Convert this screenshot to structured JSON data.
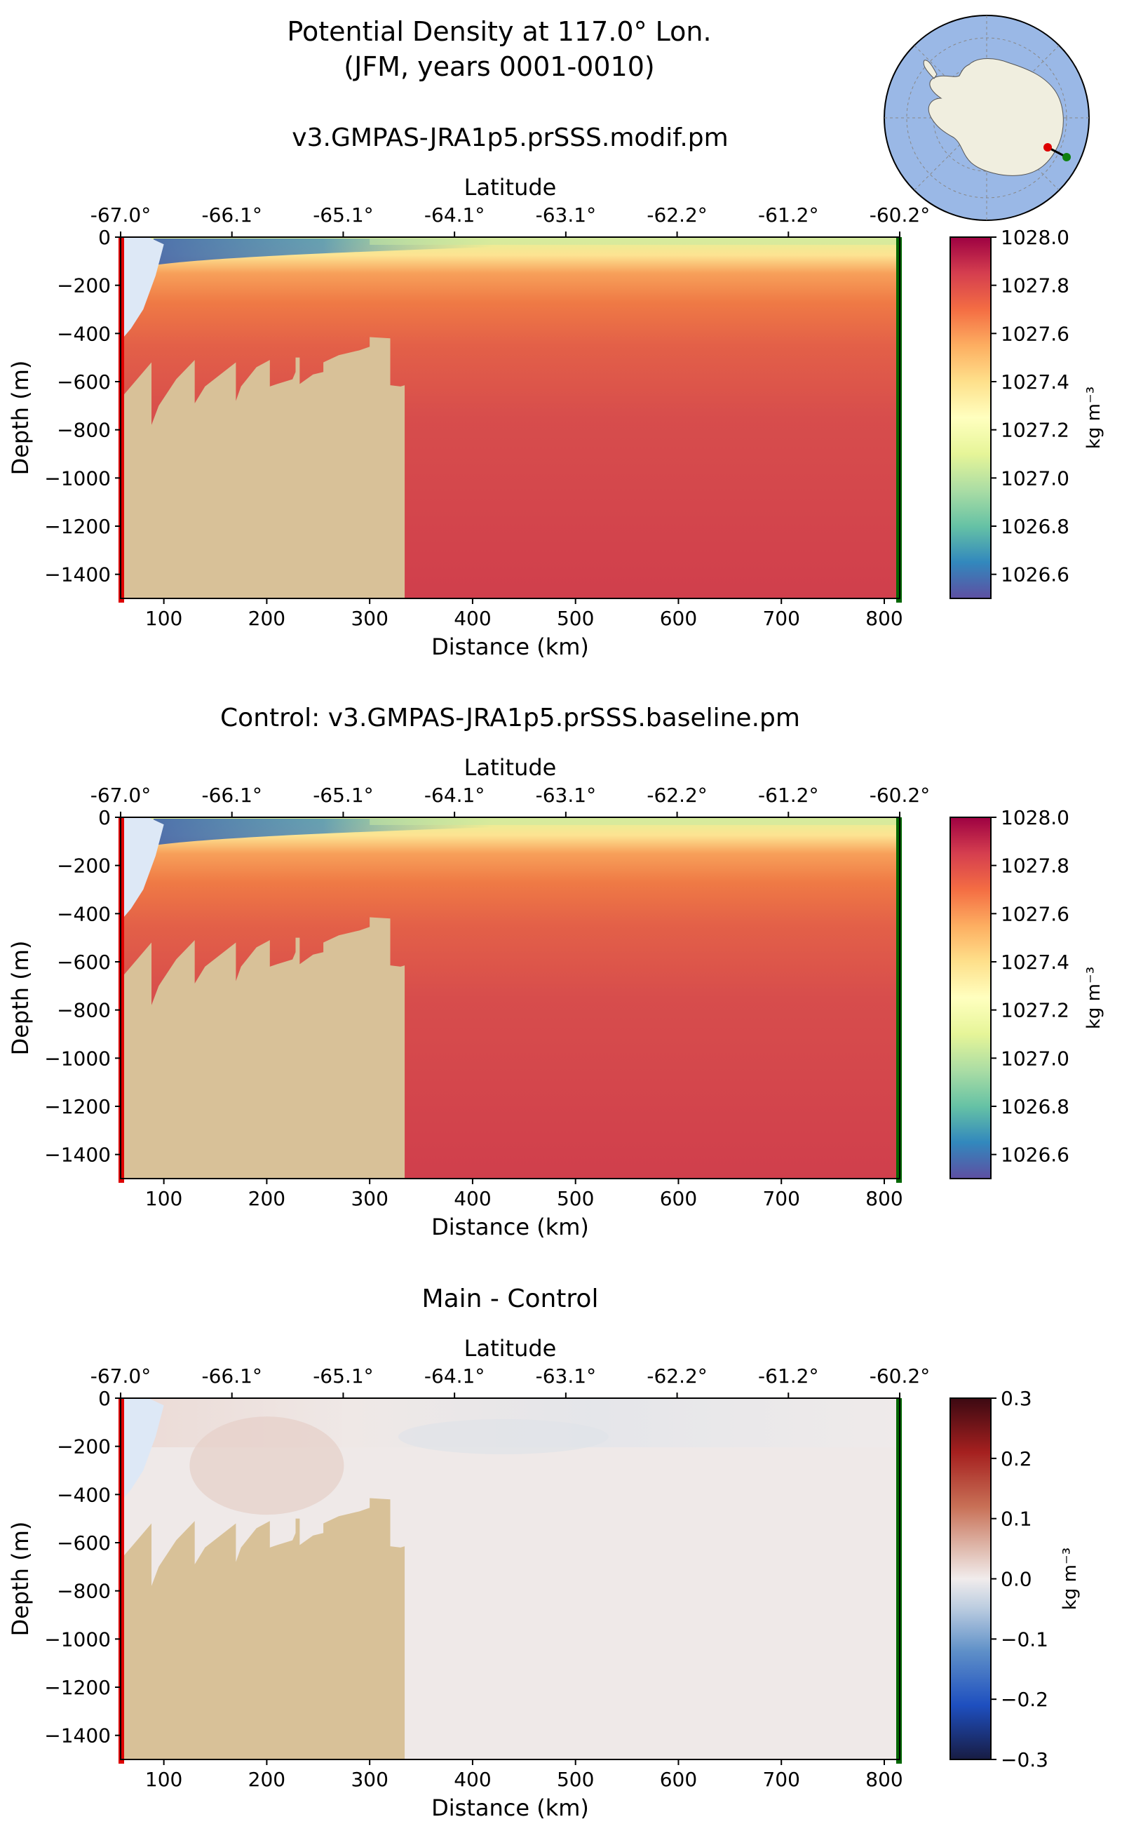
{
  "figure": {
    "title_line1": "Potential Density at 117.0° Lon.",
    "title_line2": "(JFM, years 0001-0010)"
  },
  "colors": {
    "land": "#d8c198",
    "ice_shelf_cavity": "#dde8f6",
    "start_marker": "#dd0000",
    "end_marker": "#006600",
    "map_ocean": "#9ab8e6",
    "map_land": "#f0eedf"
  },
  "chart_data": [
    {
      "type": "heatmap",
      "title": "v3.GMPAS-JRA1p5.prSSS.modif.pm",
      "xlabel": "Distance (km)",
      "ylabel": "Depth (m)",
      "top_axis_label": "Latitude",
      "xlim": [
        58,
        815
      ],
      "ylim": [
        -1500,
        0
      ],
      "x_ticks": [
        100,
        200,
        300,
        400,
        500,
        600,
        700,
        800
      ],
      "y_ticks": [
        0,
        -200,
        -400,
        -600,
        -800,
        -1000,
        -1200,
        -1400
      ],
      "x_tick_labels": [
        "100",
        "200",
        "300",
        "400",
        "500",
        "600",
        "700",
        "800"
      ],
      "y_tick_labels": [
        "0",
        "−200",
        "−400",
        "−600",
        "−800",
        "−1000",
        "−1200",
        "−1400"
      ],
      "lat_tick_labels": [
        "-67.0°",
        "-66.1°",
        "-65.1°",
        "-64.1°",
        "-63.1°",
        "-62.2°",
        "-61.2°",
        "-60.2°"
      ],
      "colorbar": {
        "label": "kg m⁻³",
        "range": [
          1026.5,
          1028.0
        ],
        "tick_values": [
          1028.0,
          1027.8,
          1027.6,
          1027.4,
          1027.2,
          1027.0,
          1026.8,
          1026.6
        ],
        "tick_labels": [
          "1028.0",
          "1027.8",
          "1027.6",
          "1027.4",
          "1027.2",
          "1027.0",
          "1026.8",
          "1026.6"
        ],
        "colormap": "Spectral_r"
      },
      "field": "density"
    },
    {
      "type": "heatmap",
      "title": "Control: v3.GMPAS-JRA1p5.prSSS.baseline.pm",
      "xlabel": "Distance (km)",
      "ylabel": "Depth (m)",
      "top_axis_label": "Latitude",
      "xlim": [
        58,
        815
      ],
      "ylim": [
        -1500,
        0
      ],
      "x_ticks": [
        100,
        200,
        300,
        400,
        500,
        600,
        700,
        800
      ],
      "y_ticks": [
        0,
        -200,
        -400,
        -600,
        -800,
        -1000,
        -1200,
        -1400
      ],
      "x_tick_labels": [
        "100",
        "200",
        "300",
        "400",
        "500",
        "600",
        "700",
        "800"
      ],
      "y_tick_labels": [
        "0",
        "−200",
        "−400",
        "−600",
        "−800",
        "−1000",
        "−1200",
        "−1400"
      ],
      "lat_tick_labels": [
        "-67.0°",
        "-66.1°",
        "-65.1°",
        "-64.1°",
        "-63.1°",
        "-62.2°",
        "-61.2°",
        "-60.2°"
      ],
      "colorbar": {
        "label": "kg m⁻³",
        "range": [
          1026.5,
          1028.0
        ],
        "tick_values": [
          1028.0,
          1027.8,
          1027.6,
          1027.4,
          1027.2,
          1027.0,
          1026.8,
          1026.6
        ],
        "tick_labels": [
          "1028.0",
          "1027.8",
          "1027.6",
          "1027.4",
          "1027.2",
          "1027.0",
          "1026.8",
          "1026.6"
        ],
        "colormap": "Spectral_r"
      },
      "field": "density"
    },
    {
      "type": "heatmap",
      "title": "Main - Control",
      "xlabel": "Distance (km)",
      "ylabel": "Depth (m)",
      "top_axis_label": "Latitude",
      "xlim": [
        58,
        815
      ],
      "ylim": [
        -1500,
        0
      ],
      "x_ticks": [
        100,
        200,
        300,
        400,
        500,
        600,
        700,
        800
      ],
      "y_ticks": [
        0,
        -200,
        -400,
        -600,
        -800,
        -1000,
        -1200,
        -1400
      ],
      "x_tick_labels": [
        "100",
        "200",
        "300",
        "400",
        "500",
        "600",
        "700",
        "800"
      ],
      "y_tick_labels": [
        "0",
        "−200",
        "−400",
        "−600",
        "−800",
        "−1000",
        "−1200",
        "−1400"
      ],
      "lat_tick_labels": [
        "-67.0°",
        "-66.1°",
        "-65.1°",
        "-64.1°",
        "-63.1°",
        "-62.2°",
        "-61.2°",
        "-60.2°"
      ],
      "colorbar": {
        "label": "kg m⁻³",
        "range": [
          -0.3,
          0.3
        ],
        "tick_values": [
          0.3,
          0.2,
          0.1,
          0.0,
          -0.1,
          -0.2,
          -0.3
        ],
        "tick_labels": [
          "0.3",
          "0.2",
          "0.1",
          "0.0",
          "−0.1",
          "−0.2",
          "−0.3"
        ],
        "colormap": "balance"
      },
      "field": "difference"
    }
  ],
  "section": {
    "ice_shelf_draft": [
      [
        58,
        0
      ],
      [
        85,
        0
      ],
      [
        100,
        -30
      ],
      [
        92,
        -160
      ],
      [
        80,
        -300
      ],
      [
        68,
        -380
      ],
      [
        58,
        -430
      ]
    ],
    "bathymetry": [
      [
        58,
        -670
      ],
      [
        68,
        -620
      ],
      [
        80,
        -560
      ],
      [
        88,
        -520
      ],
      [
        88,
        -780
      ],
      [
        95,
        -700
      ],
      [
        112,
        -590
      ],
      [
        130,
        -510
      ],
      [
        130,
        -690
      ],
      [
        140,
        -620
      ],
      [
        158,
        -560
      ],
      [
        170,
        -520
      ],
      [
        170,
        -680
      ],
      [
        175,
        -620
      ],
      [
        190,
        -540
      ],
      [
        203,
        -510
      ],
      [
        203,
        -620
      ],
      [
        210,
        -610
      ],
      [
        225,
        -590
      ],
      [
        228,
        -560
      ],
      [
        228,
        -500
      ],
      [
        232,
        -500
      ],
      [
        232,
        -610
      ],
      [
        245,
        -570
      ],
      [
        255,
        -560
      ],
      [
        255,
        -520
      ],
      [
        270,
        -490
      ],
      [
        290,
        -470
      ],
      [
        300,
        -455
      ],
      [
        300,
        -415
      ],
      [
        320,
        -420
      ],
      [
        320,
        -615
      ],
      [
        330,
        -620
      ],
      [
        334,
        -615
      ],
      [
        334,
        -545
      ]
    ]
  }
}
